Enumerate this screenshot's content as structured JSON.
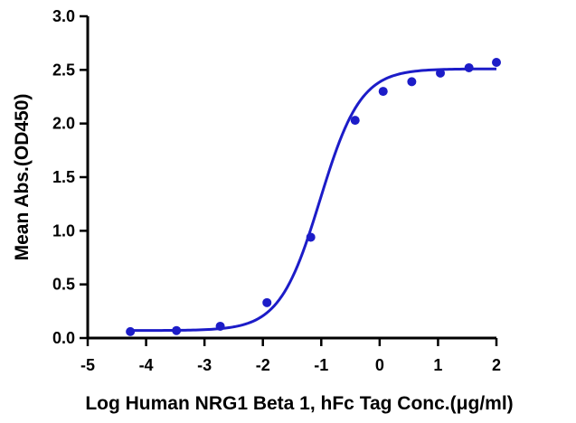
{
  "chart_data": {
    "type": "scatter",
    "title": "",
    "xlabel": "Log Human NRG1 Beta 1, hFc Tag Conc.(μg/ml)",
    "ylabel": "Mean Abs.(OD450)",
    "xlim": [
      -5,
      2
    ],
    "ylim": [
      0,
      3.0
    ],
    "x_ticks": [
      "-5",
      "-4",
      "-3",
      "-2",
      "-1",
      "0",
      "1",
      "2"
    ],
    "y_ticks": [
      "0.0",
      "0.5",
      "1.0",
      "1.5",
      "2.0",
      "2.5",
      "3.0"
    ],
    "grid": false,
    "legend": "none",
    "series": [
      {
        "x": [
          -4.27,
          -3.48,
          -2.73,
          -1.93,
          -1.18,
          -0.42,
          0.06,
          0.55,
          1.04,
          1.53,
          2.0
        ],
        "y": [
          0.06,
          0.07,
          0.11,
          0.33,
          0.94,
          2.03,
          2.3,
          2.39,
          2.47,
          2.52,
          2.57
        ],
        "color": "#1c1cc8"
      }
    ],
    "fit": {
      "type": "4PL",
      "bottom": 0.07,
      "top": 2.51,
      "logEC50": -1.02,
      "hill": 1.25,
      "color": "#1c1cc8"
    }
  }
}
